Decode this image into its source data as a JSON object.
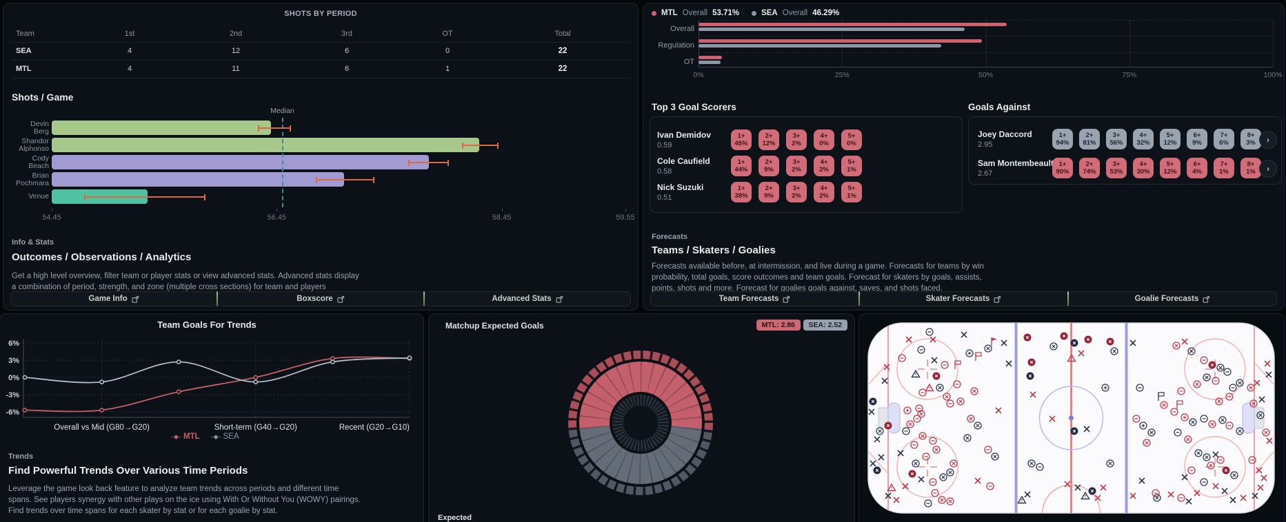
{
  "shots_by_period": {
    "title": "SHOTS BY PERIOD",
    "columns": [
      "Team",
      "1st",
      "2nd",
      "3rd",
      "OT",
      "Total"
    ],
    "rows": [
      {
        "team": "SEA",
        "values": [
          "4",
          "12",
          "6",
          "0",
          "22"
        ]
      },
      {
        "team": "MTL",
        "values": [
          "4",
          "11",
          "6",
          "1",
          "22"
        ]
      }
    ]
  },
  "shots_per_game": {
    "title": "Shots / Game",
    "median_label": "Median",
    "median_value": 56.5,
    "axis_min": 54.45,
    "axis_max": 59.55,
    "ticks": [
      54.45,
      56.45,
      58.45,
      59.55
    ],
    "bars": [
      {
        "label_lines": [
          "Devin",
          "Berg"
        ],
        "value": 56.4,
        "err": [
          56.28,
          56.58
        ],
        "color": "#a6c98b"
      },
      {
        "label_lines": [
          "Shandor",
          "Alphonso"
        ],
        "value": 58.25,
        "err": [
          58.1,
          58.42
        ],
        "color": "#a6c98b"
      },
      {
        "label_lines": [
          "Cody",
          "Beach"
        ],
        "value": 57.8,
        "err": [
          57.62,
          57.98
        ],
        "color": "#a29bd1"
      },
      {
        "label_lines": [
          "Brian",
          "Pochmara"
        ],
        "value": 57.05,
        "err": [
          56.8,
          57.32
        ],
        "color": "#a29bd1"
      },
      {
        "label_lines": [
          "Venue"
        ],
        "value": 55.3,
        "err": [
          54.74,
          55.82
        ],
        "color": "#4fc2a2"
      }
    ]
  },
  "info_stats": {
    "label": "Info & Stats",
    "heading": "Outcomes / Observations / Analytics",
    "desc_line1": "Get a high level overview, filter team or player stats or view advanced stats. Advanced stats display",
    "desc_line2": "a combination of period, strength, and zone (multiple cross sections) for team and players"
  },
  "left_buttons": [
    {
      "label": "Game Info"
    },
    {
      "label": "Boxscore"
    },
    {
      "label": "Advanced Stats"
    }
  ],
  "win_chart": {
    "legend": [
      {
        "team": "MTL",
        "word": "Overall",
        "value": "53.71%",
        "color": "#cf6070"
      },
      {
        "team": "SEA",
        "word": "Overall",
        "value": "46.29%",
        "color": "#8d97a6"
      }
    ],
    "rows": [
      {
        "label": "Overall",
        "mtl": 53.71,
        "sea": 46.29
      },
      {
        "label": "Regulation",
        "mtl": 49.3,
        "sea": 42.2
      },
      {
        "label": "OT",
        "mtl": 4.1,
        "sea": 3.8
      }
    ],
    "x_ticks": [
      "0%",
      "25%",
      "50%",
      "75%",
      "100%"
    ],
    "mtl_color": "#cf6070",
    "sea_color": "#8d97a6"
  },
  "goal_scorers": {
    "title": "Top 3 Goal Scorers",
    "players": [
      {
        "name": "Ivan Demidov",
        "value": "0.59",
        "chips": [
          [
            "1+",
            "45%"
          ],
          [
            "2+",
            "12%"
          ],
          [
            "3+",
            "2%"
          ],
          [
            "4+",
            "0%"
          ],
          [
            "5+",
            "0%"
          ]
        ]
      },
      {
        "name": "Cole Caufield",
        "value": "0.58",
        "chips": [
          [
            "1+",
            "44%"
          ],
          [
            "2+",
            "9%"
          ],
          [
            "3+",
            "2%"
          ],
          [
            "4+",
            "2%"
          ],
          [
            "5+",
            "1%"
          ]
        ]
      },
      {
        "name": "Nick Suzuki",
        "value": "0.51",
        "chips": [
          [
            "1+",
            "38%"
          ],
          [
            "2+",
            "9%"
          ],
          [
            "3+",
            "2%"
          ],
          [
            "4+",
            "2%"
          ],
          [
            "5+",
            "1%"
          ]
        ]
      }
    ]
  },
  "goals_against": {
    "title": "Goals Against",
    "goalies": [
      {
        "name": "Joey Daccord",
        "value": "2.95",
        "style": "gray",
        "chips": [
          [
            "1+",
            "94%"
          ],
          [
            "2+",
            "81%"
          ],
          [
            "3+",
            "56%"
          ],
          [
            "4+",
            "32%"
          ],
          [
            "5+",
            "12%"
          ],
          [
            "6+",
            "9%"
          ],
          [
            "7+",
            "6%"
          ],
          [
            "8+",
            "3%"
          ]
        ]
      },
      {
        "name": "Sam Montembeault",
        "value": "2.67",
        "style": "red",
        "chips": [
          [
            "1+",
            "90%"
          ],
          [
            "2+",
            "74%"
          ],
          [
            "3+",
            "53%"
          ],
          [
            "4+",
            "30%"
          ],
          [
            "5+",
            "12%"
          ],
          [
            "6+",
            "4%"
          ],
          [
            "7+",
            "1%"
          ],
          [
            "8+",
            "1%"
          ]
        ]
      }
    ],
    "chevron": "›"
  },
  "forecasts": {
    "label": "Forecasts",
    "heading": "Teams / Skaters / Goalies",
    "desc_line1": "Forecasts available before, at intermission, and live during a game. Forecasts for teams by win",
    "desc_line2": "probability, total goals, score outcomes and team goals. Forecast for skaters by goals, assists,",
    "desc_line3": "points, shots and more. Forecast for goalies goals against, saves, and shots faced."
  },
  "right_buttons": [
    {
      "label": "Team Forecasts"
    },
    {
      "label": "Skater Forecasts"
    },
    {
      "label": "Goalie Forecasts"
    }
  ],
  "chart_data": {
    "type": "line",
    "title": "Team Goals For Trends",
    "x_labels": [
      "Overall vs Mid (G80→G20)",
      "Short-term (G40→G20)",
      "Recent (G20→G10)"
    ],
    "y_ticks": [
      "6%",
      "3%",
      "0%",
      "-3%",
      "-6%"
    ],
    "y_values": [
      6,
      3,
      0,
      -3,
      -6
    ],
    "ylim": [
      -6.6,
      6.6
    ],
    "series": [
      {
        "name": "MTL",
        "color": "#c75f6b",
        "values": [
          -5.7,
          -5.7,
          -2.5,
          0.0,
          3.3,
          3.3
        ]
      },
      {
        "name": "SEA",
        "color": "#b3bcc5",
        "values": [
          0.0,
          -0.8,
          2.7,
          -0.8,
          2.7,
          3.4
        ]
      }
    ]
  },
  "trends": {
    "label": "Trends",
    "heading": "Find Powerful Trends Over Various Time Periods",
    "desc_line1": "Leverage the game look back feature to analyze team trends across periods and different time",
    "desc_line2": "spans. See players synergy with other plays on the ice using With Or Without You (WOWY) pairings.",
    "desc_line3": "Find trends over time spans for each skater by stat or for each goalie by stat."
  },
  "expected_goals": {
    "title": "Matchup Expected Goals",
    "mtl_label": "MTL:",
    "mtl_value": "2.86",
    "sea_label": "SEA:",
    "sea_value": "2.52",
    "mtl": 2.86,
    "sea": 2.52,
    "footer": "Expected",
    "ring_red": "#c4606c",
    "ring_gray": "#646c78",
    "outer_red": "#a84e59",
    "outer_gray": "#515864"
  },
  "rink": {
    "colors": {
      "mtl": "#c23c4a",
      "sea": "#303850",
      "mtl_fill": "#992235",
      "sea_fill": "#252c42"
    },
    "markers": [
      [
        60,
        25,
        "x",
        "r"
      ],
      [
        95,
        25,
        "x",
        "r"
      ],
      [
        140,
        18,
        "x",
        "d"
      ],
      [
        90,
        14,
        "cm",
        "d"
      ],
      [
        78,
        40,
        "cm",
        "d"
      ],
      [
        50,
        52,
        "cm",
        "r"
      ],
      [
        97,
        55,
        "x",
        "d"
      ],
      [
        112,
        62,
        "cm",
        "r"
      ],
      [
        28,
        65,
        "x",
        "r"
      ],
      [
        25,
        85,
        "x",
        "d"
      ],
      [
        70,
        75,
        "tri",
        "d"
      ],
      [
        100,
        78,
        "goal",
        "r"
      ],
      [
        90,
        95,
        "tri",
        "r"
      ],
      [
        105,
        95,
        "cx",
        "d"
      ],
      [
        80,
        102,
        "cm",
        "r"
      ],
      [
        115,
        108,
        "cx",
        "r"
      ],
      [
        130,
        90,
        "cm",
        "r"
      ],
      [
        135,
        115,
        "cx",
        "r"
      ],
      [
        155,
        100,
        "cx",
        "r"
      ],
      [
        120,
        118,
        "cm",
        "r"
      ],
      [
        75,
        125,
        "cm",
        "r"
      ],
      [
        78,
        133,
        "cx",
        "r"
      ],
      [
        160,
        50,
        "flag",
        "r"
      ],
      [
        148,
        45,
        "cp",
        "d"
      ],
      [
        130,
        62,
        "flag",
        "r"
      ],
      [
        175,
        38,
        "cx",
        "d"
      ],
      [
        183,
        28,
        "pen",
        "r"
      ],
      [
        198,
        30,
        "x",
        "d"
      ],
      [
        205,
        60,
        "x",
        "d"
      ],
      [
        190,
        128,
        "x",
        "r"
      ],
      [
        58,
        128,
        "cp",
        "r"
      ],
      [
        30,
        150,
        "goal",
        "r"
      ],
      [
        18,
        158,
        "cx",
        "d"
      ],
      [
        14,
        170,
        "x",
        "d"
      ],
      [
        8,
        115,
        "goal",
        "d"
      ],
      [
        6,
        130,
        "x",
        "d"
      ],
      [
        20,
        196,
        "x",
        "d"
      ],
      [
        8,
        205,
        "x",
        "d"
      ],
      [
        14,
        215,
        "goal",
        "d"
      ],
      [
        72,
        140,
        "cm",
        "r"
      ],
      [
        62,
        148,
        "cx",
        "r"
      ],
      [
        56,
        158,
        "cm",
        "d"
      ],
      [
        80,
        165,
        "cx",
        "r"
      ],
      [
        95,
        172,
        "cm",
        "r"
      ],
      [
        68,
        178,
        "cm",
        "r"
      ],
      [
        100,
        185,
        "cx",
        "r"
      ],
      [
        85,
        195,
        "cm",
        "r"
      ],
      [
        48,
        190,
        "x",
        "d"
      ],
      [
        150,
        140,
        "cx",
        "r"
      ],
      [
        160,
        150,
        "cx",
        "d"
      ],
      [
        145,
        168,
        "cx",
        "d"
      ],
      [
        175,
        185,
        "cm",
        "r"
      ],
      [
        185,
        195,
        "cx",
        "d"
      ],
      [
        160,
        230,
        "x",
        "r"
      ],
      [
        178,
        238,
        "cm",
        "r"
      ],
      [
        70,
        205,
        "cx",
        "d"
      ],
      [
        65,
        220,
        "goal",
        "r"
      ],
      [
        78,
        228,
        "x",
        "d"
      ],
      [
        95,
        232,
        "cm",
        "r"
      ],
      [
        110,
        225,
        "cx",
        "d"
      ],
      [
        120,
        218,
        "cx",
        "d"
      ],
      [
        125,
        205,
        "cx",
        "r"
      ],
      [
        98,
        248,
        "cm",
        "r"
      ],
      [
        108,
        258,
        "cx",
        "r"
      ],
      [
        55,
        238,
        "x",
        "r"
      ],
      [
        35,
        240,
        "tri",
        "r"
      ],
      [
        30,
        252,
        "x",
        "d"
      ],
      [
        42,
        258,
        "x",
        "r"
      ],
      [
        88,
        263,
        "cm",
        "d"
      ],
      [
        120,
        260,
        "cx",
        "r"
      ],
      [
        232,
        22,
        "goal",
        "r"
      ],
      [
        238,
        58,
        "goal",
        "r"
      ],
      [
        236,
        78,
        "goal",
        "d"
      ],
      [
        240,
        105,
        "x",
        "r"
      ],
      [
        268,
        140,
        "x",
        "r"
      ],
      [
        250,
        210,
        "cm",
        "d"
      ],
      [
        232,
        250,
        "x",
        "d"
      ],
      [
        224,
        258,
        "tri",
        "d"
      ],
      [
        270,
        35,
        "cx",
        "d"
      ],
      [
        285,
        20,
        "goal",
        "r"
      ],
      [
        300,
        30,
        "goal",
        "d"
      ],
      [
        320,
        25,
        "goal",
        "r"
      ],
      [
        310,
        45,
        "x",
        "r"
      ],
      [
        296,
        52,
        "tri",
        "r"
      ],
      [
        300,
        158,
        "goal",
        "d"
      ],
      [
        318,
        155,
        "x",
        "d"
      ],
      [
        238,
        205,
        "cx",
        "d"
      ],
      [
        290,
        235,
        "x",
        "r"
      ],
      [
        305,
        240,
        "x",
        "d"
      ],
      [
        316,
        252,
        "tri",
        "d"
      ],
      [
        326,
        245,
        "goal",
        "d"
      ],
      [
        334,
        255,
        "x",
        "r"
      ],
      [
        352,
        28,
        "goal",
        "r"
      ],
      [
        358,
        42,
        "cx",
        "d"
      ],
      [
        345,
        95,
        "cp",
        "d"
      ],
      [
        352,
        205,
        "cx",
        "d"
      ],
      [
        342,
        240,
        "x",
        "r"
      ],
      [
        385,
        30,
        "x",
        "d"
      ],
      [
        395,
        95,
        "cm",
        "d"
      ],
      [
        425,
        108,
        "flag",
        "d"
      ],
      [
        390,
        140,
        "cm",
        "r"
      ],
      [
        400,
        150,
        "cp",
        "d"
      ],
      [
        412,
        160,
        "cx",
        "d"
      ],
      [
        405,
        175,
        "cx",
        "r"
      ],
      [
        398,
        230,
        "x",
        "d"
      ],
      [
        385,
        252,
        "x",
        "r"
      ],
      [
        418,
        248,
        "cm",
        "r"
      ],
      [
        430,
        120,
        "cx",
        "r"
      ],
      [
        460,
        28,
        "x",
        "r"
      ],
      [
        448,
        34,
        "cx",
        "r"
      ],
      [
        470,
        42,
        "cx",
        "d"
      ],
      [
        488,
        55,
        "cm",
        "r"
      ],
      [
        500,
        62,
        "goal",
        "r"
      ],
      [
        512,
        66,
        "cx",
        "d"
      ],
      [
        522,
        72,
        "cm",
        "d"
      ],
      [
        492,
        80,
        "cx",
        "d"
      ],
      [
        505,
        85,
        "cm",
        "r"
      ],
      [
        478,
        90,
        "cx",
        "r"
      ],
      [
        530,
        95,
        "cm",
        "d"
      ],
      [
        540,
        88,
        "cx",
        "d"
      ],
      [
        525,
        108,
        "cm",
        "r"
      ],
      [
        455,
        100,
        "cm",
        "r"
      ],
      [
        510,
        115,
        "cx",
        "r"
      ],
      [
        452,
        120,
        "flag",
        "r"
      ],
      [
        445,
        130,
        "cm",
        "r"
      ],
      [
        460,
        138,
        "cp",
        "r"
      ],
      [
        472,
        145,
        "cx",
        "d"
      ],
      [
        488,
        140,
        "cm",
        "d"
      ],
      [
        500,
        148,
        "cx",
        "r"
      ],
      [
        515,
        142,
        "cx",
        "d"
      ],
      [
        525,
        150,
        "cm",
        "r"
      ],
      [
        540,
        158,
        "cx",
        "d"
      ],
      [
        450,
        160,
        "cm",
        "d"
      ],
      [
        465,
        170,
        "cx",
        "r"
      ],
      [
        480,
        190,
        "cx",
        "d"
      ],
      [
        492,
        196,
        "cx",
        "d"
      ],
      [
        505,
        192,
        "x",
        "d"
      ],
      [
        512,
        200,
        "cm",
        "r"
      ],
      [
        498,
        208,
        "cx",
        "r"
      ],
      [
        520,
        215,
        "goal",
        "r"
      ],
      [
        532,
        222,
        "cx",
        "d"
      ],
      [
        470,
        215,
        "cm",
        "r"
      ],
      [
        460,
        225,
        "x",
        "d"
      ],
      [
        488,
        232,
        "cm",
        "d"
      ],
      [
        505,
        238,
        "x",
        "r"
      ],
      [
        478,
        248,
        "x",
        "r"
      ],
      [
        518,
        245,
        "x",
        "d"
      ],
      [
        556,
        95,
        "cx",
        "r"
      ],
      [
        565,
        88,
        "x",
        "r"
      ],
      [
        560,
        118,
        "cx",
        "r"
      ],
      [
        572,
        112,
        "x",
        "d"
      ],
      [
        570,
        135,
        "cx",
        "d"
      ],
      [
        578,
        160,
        "cx",
        "r"
      ],
      [
        583,
        172,
        "x",
        "r"
      ],
      [
        558,
        200,
        "cm",
        "r"
      ],
      [
        568,
        215,
        "x",
        "r"
      ],
      [
        575,
        226,
        "x",
        "r"
      ],
      [
        570,
        240,
        "x",
        "r"
      ],
      [
        562,
        252,
        "x",
        "d"
      ],
      [
        545,
        255,
        "x",
        "r"
      ],
      [
        530,
        258,
        "x",
        "d"
      ],
      [
        455,
        255,
        "cm",
        "r"
      ],
      [
        466,
        260,
        "x",
        "d"
      ],
      [
        440,
        250,
        "x",
        "r"
      ],
      [
        420,
        255,
        "cx",
        "d"
      ],
      [
        580,
        60,
        "x",
        "r"
      ],
      [
        582,
        76,
        "x",
        "d"
      ]
    ]
  }
}
